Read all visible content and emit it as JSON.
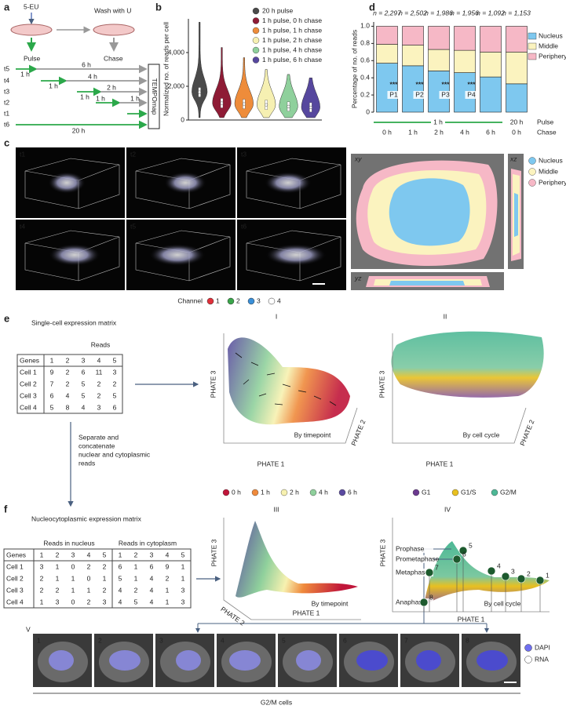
{
  "panel_labels": {
    "a": "a",
    "b": "b",
    "c": "c",
    "d": "d",
    "e": "e",
    "f": "f"
  },
  "panel_a": {
    "labeling": "5-EU",
    "wash": "Wash with U",
    "pulse": "Pulse",
    "chase": "Chase",
    "timepoints": [
      "t5",
      "t4",
      "t3",
      "t2",
      "t1",
      "t6"
    ],
    "durations": [
      "1 h",
      "6 h",
      "1 h",
      "4 h",
      "1 h",
      "2 h",
      "1 h",
      "1 h",
      "20 h"
    ],
    "method": "TEMPOmap"
  },
  "chart_data": [
    {
      "type": "violin",
      "ylabel": "Normalized no. of reads per cell",
      "categories": [
        "20 h pulse",
        "1 h pulse, 0 h chase",
        "1 h pulse, 1 h chase",
        "1 h pulse, 2 h chase",
        "1 h pulse, 4 h chase",
        "1 h pulse, 6 h chase"
      ],
      "values": [
        1650,
        1000,
        950,
        900,
        800,
        750
      ],
      "upper": [
        5800,
        4300,
        3700,
        3000,
        2700,
        2500
      ],
      "colors": [
        "#4a4a4a",
        "#8e1b35",
        "#ee8c3a",
        "#f6f0b2",
        "#8fd09c",
        "#56479e"
      ],
      "ylim": [
        0,
        6000
      ],
      "yticks": [
        0,
        {
          "value": 2000,
          "label": "2,000"
        },
        {
          "value": 4000,
          "label": "4,000"
        }
      ]
    },
    {
      "type": "stacked_bar",
      "ylabel": "Percentage of no. of reads",
      "categories": [
        "0 h",
        "1 h",
        "2 h",
        "4 h",
        "6 h",
        "0 h"
      ],
      "n_labels": [
        "n = 2,297",
        "n = 2,502",
        "n = 1,986",
        "n = 1,956",
        "n = 1,092",
        "n = 1,153"
      ],
      "series": [
        {
          "name": "Nucleus",
          "color": "#7ec8ef",
          "values": [
            0.57,
            0.54,
            0.48,
            0.46,
            0.41,
            0.33
          ]
        },
        {
          "name": "Middle",
          "color": "#fbf3bf",
          "values": [
            0.22,
            0.24,
            0.25,
            0.26,
            0.29,
            0.37
          ]
        },
        {
          "name": "Periphery",
          "color": "#f6b8c6",
          "values": [
            0.21,
            0.22,
            0.27,
            0.28,
            0.3,
            0.3
          ]
        }
      ],
      "ylim": [
        0,
        1.05
      ],
      "yticks": [
        0,
        0.2,
        0.4,
        0.6,
        0.8,
        {
          "value": 1,
          "label": "1.0"
        }
      ],
      "annotations": [
        "***",
        "***",
        "***",
        "***"
      ],
      "comparisons": [
        "P1",
        "P2",
        "P3",
        "P4"
      ],
      "pulse_labels": [
        "1 h",
        "20 h"
      ],
      "row_labels": [
        "Pulse",
        "Chase"
      ]
    }
  ],
  "panel_c": {
    "tiles": [
      "t1",
      "t2",
      "t3",
      "t4",
      "t5",
      "t6"
    ],
    "channel_title": "Channel",
    "channels": [
      {
        "name": "1",
        "color": "#e0303a"
      },
      {
        "name": "2",
        "color": "#3aa54a"
      },
      {
        "name": "3",
        "color": "#3a8fd8"
      },
      {
        "name": "4",
        "color": "#ffffff"
      }
    ],
    "views": [
      "xy",
      "xz",
      "yz"
    ],
    "regions": [
      {
        "name": "Nucleus",
        "color": "#7ec8ef"
      },
      {
        "name": "Middle",
        "color": "#fbf3bf"
      },
      {
        "name": "Periphery",
        "color": "#f6b8c6"
      }
    ]
  },
  "panel_e": {
    "title": "Single-cell expression matrix",
    "reads_label": "Reads",
    "table": {
      "header": [
        "Genes",
        1,
        2,
        3,
        4,
        5
      ],
      "rows": [
        [
          "Cell 1",
          9,
          2,
          6,
          11,
          3
        ],
        [
          "Cell 2",
          7,
          2,
          5,
          2,
          2
        ],
        [
          "Cell 3",
          6,
          4,
          5,
          2,
          5
        ],
        [
          "Cell 4",
          5,
          8,
          4,
          3,
          6
        ]
      ]
    },
    "arrow_note": [
      "Separate and",
      "concatenate",
      "nuclear and cytoplasmic",
      "reads"
    ],
    "plots": [
      {
        "numeral": "I",
        "axes": [
          "PHATE 3",
          "PHATE 1",
          "PHATE 2"
        ],
        "caption": "By timepoint"
      },
      {
        "numeral": "II",
        "axes": [
          "PHATE 3",
          "PHATE 1",
          "PHATE 2"
        ],
        "caption": "By cell cycle"
      }
    ],
    "timepoint_legend": [
      {
        "name": "0 h",
        "color": "#c0163a"
      },
      {
        "name": "1 h",
        "color": "#ef8a3c"
      },
      {
        "name": "2 h",
        "color": "#f7f1b0"
      },
      {
        "name": "4 h",
        "color": "#8fd09c"
      },
      {
        "name": "6 h",
        "color": "#5a4aa0"
      }
    ],
    "cellcycle_legend": [
      {
        "name": "G1",
        "color": "#6b3a8f"
      },
      {
        "name": "G1/S",
        "color": "#e8c020"
      },
      {
        "name": "G2/M",
        "color": "#4db896"
      }
    ]
  },
  "panel_f": {
    "title": "Nucleocytoplasmic expression matrix",
    "group_labels": [
      "Reads in nucleus",
      "Reads in cytoplasm"
    ],
    "table": {
      "header": [
        "Genes",
        1,
        2,
        3,
        4,
        5,
        1,
        2,
        3,
        4,
        5
      ],
      "rows": [
        [
          "Cell 1",
          3,
          1,
          0,
          2,
          2,
          6,
          1,
          6,
          9,
          1
        ],
        [
          "Cell 2",
          2,
          1,
          1,
          0,
          1,
          5,
          1,
          4,
          2,
          1
        ],
        [
          "Cell 3",
          2,
          2,
          1,
          1,
          2,
          4,
          2,
          4,
          1,
          3
        ],
        [
          "Cell 4",
          1,
          3,
          0,
          2,
          3,
          4,
          5,
          4,
          1,
          3
        ]
      ]
    },
    "plots": [
      {
        "numeral": "III",
        "axes": [
          "PHATE 3",
          "PHATE 1",
          "PHATE 2"
        ],
        "caption": "By timepoint"
      },
      {
        "numeral": "IV",
        "axes": [
          "PHATE 3",
          "PHATE 1"
        ],
        "caption": "By cell cycle"
      }
    ],
    "phases": [
      "Prophase",
      "Prometaphase",
      "Metaphase",
      "Anaphase"
    ],
    "nodes": [
      "1",
      "2",
      "3",
      "4",
      "5",
      "6",
      "7",
      "8"
    ],
    "panel_v": {
      "numeral": "V",
      "tiles": [
        "1",
        "2",
        "3",
        "4",
        "5",
        "6",
        "7",
        "8"
      ],
      "legend": [
        {
          "name": "DAPI",
          "color": "#6f6ff0"
        },
        {
          "name": "RNA",
          "color": "#ffffff"
        }
      ],
      "caption": "G2/M cells"
    }
  }
}
